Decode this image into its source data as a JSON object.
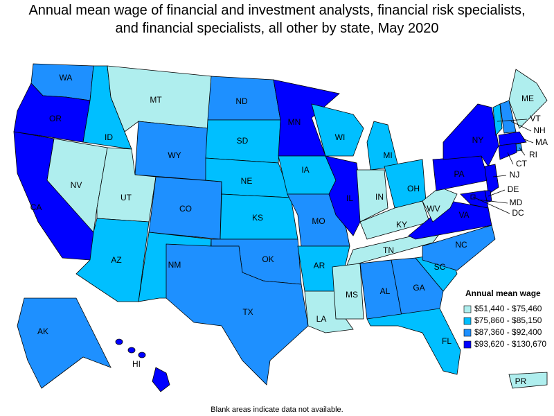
{
  "title": "Annual mean wage of financial and investment analysts, financial risk specialists, and financial specialists, all other by state, May 2020",
  "legend": {
    "title": "Annual mean wage",
    "items": [
      {
        "label": "$51,440 - $75,460",
        "color": "#afeeee"
      },
      {
        "label": "$75,860 - $85,150",
        "color": "#00bfff"
      },
      {
        "label": "$87,360 - $92,400",
        "color": "#1e90ff"
      },
      {
        "label": "$93,620 - $130,670",
        "color": "#0000ff"
      }
    ]
  },
  "states": [
    {
      "abbr": "WA",
      "color": "#1e90ff"
    },
    {
      "abbr": "OR",
      "color": "#0000ff"
    },
    {
      "abbr": "CA",
      "color": "#0000ff"
    },
    {
      "abbr": "NV",
      "color": "#afeeee"
    },
    {
      "abbr": "ID",
      "color": "#00bfff"
    },
    {
      "abbr": "MT",
      "color": "#afeeee"
    },
    {
      "abbr": "WY",
      "color": "#1e90ff"
    },
    {
      "abbr": "UT",
      "color": "#afeeee"
    },
    {
      "abbr": "AZ",
      "color": "#00bfff"
    },
    {
      "abbr": "CO",
      "color": "#1e90ff"
    },
    {
      "abbr": "NM",
      "color": "#00bfff"
    },
    {
      "abbr": "ND",
      "color": "#1e90ff"
    },
    {
      "abbr": "SD",
      "color": "#00bfff"
    },
    {
      "abbr": "NE",
      "color": "#00bfff"
    },
    {
      "abbr": "KS",
      "color": "#00bfff"
    },
    {
      "abbr": "OK",
      "color": "#1e90ff"
    },
    {
      "abbr": "TX",
      "color": "#1e90ff"
    },
    {
      "abbr": "MN",
      "color": "#0000ff"
    },
    {
      "abbr": "IA",
      "color": "#00bfff"
    },
    {
      "abbr": "MO",
      "color": "#1e90ff"
    },
    {
      "abbr": "AR",
      "color": "#00bfff"
    },
    {
      "abbr": "LA",
      "color": "#afeeee"
    },
    {
      "abbr": "WI",
      "color": "#00bfff"
    },
    {
      "abbr": "IL",
      "color": "#0000ff"
    },
    {
      "abbr": "MI",
      "color": "#00bfff"
    },
    {
      "abbr": "IN",
      "color": "#afeeee"
    },
    {
      "abbr": "OH",
      "color": "#00bfff"
    },
    {
      "abbr": "KY",
      "color": "#afeeee"
    },
    {
      "abbr": "TN",
      "color": "#afeeee"
    },
    {
      "abbr": "MS",
      "color": "#afeeee"
    },
    {
      "abbr": "AL",
      "color": "#1e90ff"
    },
    {
      "abbr": "GA",
      "color": "#1e90ff"
    },
    {
      "abbr": "FL",
      "color": "#00bfff"
    },
    {
      "abbr": "SC",
      "color": "#00bfff"
    },
    {
      "abbr": "NC",
      "color": "#1e90ff"
    },
    {
      "abbr": "VA",
      "color": "#0000ff"
    },
    {
      "abbr": "WV",
      "color": "#afeeee"
    },
    {
      "abbr": "PA",
      "color": "#0000ff"
    },
    {
      "abbr": "NY",
      "color": "#0000ff"
    },
    {
      "abbr": "VT",
      "color": "#00bfff"
    },
    {
      "abbr": "NH",
      "color": "#1e90ff"
    },
    {
      "abbr": "ME",
      "color": "#afeeee"
    },
    {
      "abbr": "MA",
      "color": "#0000ff"
    },
    {
      "abbr": "RI",
      "color": "#1e90ff"
    },
    {
      "abbr": "CT",
      "color": "#0000ff"
    },
    {
      "abbr": "NJ",
      "color": "#0000ff"
    },
    {
      "abbr": "DE",
      "color": "#0000ff"
    },
    {
      "abbr": "MD",
      "color": "#0000ff"
    },
    {
      "abbr": "DC",
      "color": "#0000ff"
    },
    {
      "abbr": "AK",
      "color": "#1e90ff"
    },
    {
      "abbr": "HI",
      "color": "#0000ff"
    },
    {
      "abbr": "PR",
      "color": "#afeeee"
    }
  ],
  "footnote": "Blank areas indicate data not available."
}
